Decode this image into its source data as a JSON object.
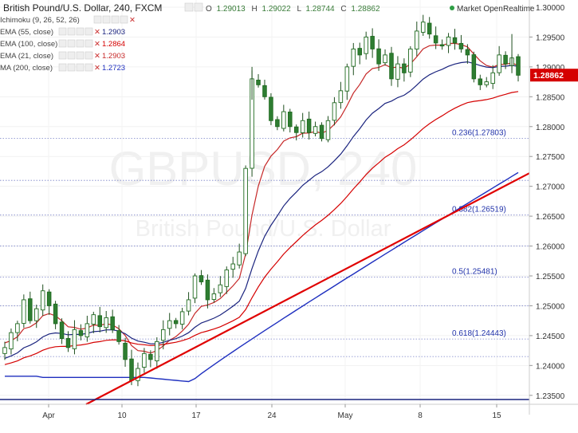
{
  "header": {
    "title": "British Pound/U.S. Dollar, 240, FXCM",
    "ohlc": {
      "o_label": "O",
      "o": "1.29013",
      "h_label": "H",
      "h": "1.29022",
      "l_label": "L",
      "l": "1.28744",
      "c_label": "C",
      "c": "1.28862"
    },
    "market_status": "Market Open",
    "realtime": "Realtime",
    "status_color": "#2e9e44"
  },
  "indicators": [
    {
      "label": "Ichimoku (9, 26, 52, 26)",
      "value": "",
      "color": "#999999"
    },
    {
      "label": "EMA (55, close)",
      "value": "1.2903",
      "color": "#1a237e"
    },
    {
      "label": "EMA (100, close)",
      "value": "1.2864",
      "color": "#d50000"
    },
    {
      "label": "EMA (21, close)",
      "value": "1.2903",
      "color": "#c62828"
    },
    {
      "label": "MA (200, close)",
      "value": "1.2723",
      "color": "#1e2fbf"
    }
  ],
  "watermark": {
    "symbol": "GBPUSD, 240",
    "name": "British Pound/U.S. Dollar"
  },
  "last_price": {
    "value": "1.28862",
    "color": "#d50000"
  },
  "chart_data": {
    "type": "candlestick",
    "symbol": "British Pound/U.S. Dollar",
    "timeframe": "240",
    "source": "FXCM",
    "ylim": [
      1.2335,
      1.3012
    ],
    "y_ticks": [
      "1.30000",
      "1.29500",
      "1.29000",
      "1.28500",
      "1.28000",
      "1.27500",
      "1.27000",
      "1.26500",
      "1.26000",
      "1.25500",
      "1.25000",
      "1.24500",
      "1.24000",
      "1.23500"
    ],
    "x_tick_labels": [
      "Apr",
      "10",
      "17",
      "24",
      "May",
      "8",
      "15"
    ],
    "fibonacci_levels": [
      {
        "label": "0.236(1.27803)",
        "price": 1.27803
      },
      {
        "label": "0.382(1.26519)",
        "price": 1.26519
      },
      {
        "label": "0.5(1.25481)",
        "price": 1.25481
      },
      {
        "label": "0.618(1.24443)",
        "price": 1.24443
      }
    ],
    "closes": [
      1.243,
      1.2455,
      1.247,
      1.251,
      1.2475,
      1.2495,
      1.2525,
      1.25,
      1.247,
      1.2445,
      1.243,
      1.246,
      1.245,
      1.247,
      1.2485,
      1.2465,
      1.248,
      1.246,
      1.244,
      1.241,
      1.2375,
      1.2395,
      1.242,
      1.241,
      1.244,
      1.246,
      1.2475,
      1.247,
      1.249,
      1.251,
      1.255,
      1.254,
      1.251,
      1.252,
      1.2535,
      1.256,
      1.257,
      1.259,
      1.273,
      1.288,
      1.287,
      1.285,
      1.281,
      1.28,
      1.2825,
      1.28,
      1.279,
      1.281,
      1.279,
      1.28,
      1.278,
      1.281,
      1.284,
      1.286,
      1.29,
      1.293,
      1.292,
      1.295,
      1.293,
      1.2905,
      1.292,
      1.288,
      1.2905,
      1.289,
      1.293,
      1.296,
      1.2975,
      1.2955,
      1.294,
      1.2935,
      1.295,
      1.294,
      1.293,
      1.292,
      1.288,
      1.287,
      1.2875,
      1.289,
      1.292,
      1.2905,
      1.2915,
      1.2886
    ],
    "series": [
      {
        "name": "EMA (21, close)",
        "color": "#c62828",
        "last": 1.2903
      },
      {
        "name": "EMA (55, close)",
        "color": "#1a237e",
        "last": 1.2903
      },
      {
        "name": "EMA (100, close)",
        "color": "#d50000",
        "last": 1.2864
      },
      {
        "name": "MA (200, close)",
        "color": "#1e2fbf",
        "last": 1.2723
      }
    ],
    "trendline": {
      "color": "#e00000",
      "from": [
        "2017-04-06",
        1.2335
      ],
      "to": [
        "2017-05-18",
        1.2722
      ]
    },
    "support_line": {
      "price": 1.2343,
      "color": "#1a237e"
    }
  }
}
